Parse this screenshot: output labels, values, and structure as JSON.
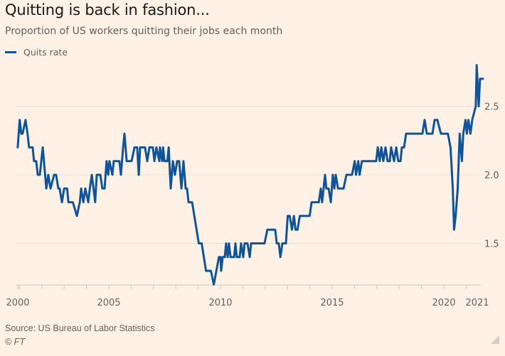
{
  "title": "Quitting is back in fashion...",
  "subtitle": "Proportion of US workers quitting their jobs each month",
  "legend": {
    "label": "Quits rate",
    "color": "#0f5499"
  },
  "footer": {
    "source": "Source: US Bureau of Labor Statistics",
    "copyright": "© FT"
  },
  "chart_data": {
    "type": "line",
    "title": "Quitting is back in fashion...",
    "subtitle": "Proportion of US workers quitting their jobs each month",
    "xlabel": "",
    "ylabel": "",
    "xlim": [
      2000.92,
      2021.6
    ],
    "ylim": [
      1.2,
      2.85
    ],
    "x_ticks": [
      "2000",
      "2005",
      "2010",
      "2015",
      "2020",
      "2021"
    ],
    "y_ticks": [
      "1.5",
      "2.0",
      "2.5"
    ],
    "grid": "horizontal",
    "legend_position": "top-left",
    "series": [
      {
        "name": "Quits rate",
        "color": "#0f5499",
        "points": [
          [
            2000.92,
            2.2
          ],
          [
            2001.01,
            2.4
          ],
          [
            2001.08,
            2.3
          ],
          [
            2001.14,
            2.3
          ],
          [
            2001.27,
            2.4
          ],
          [
            2001.36,
            2.3
          ],
          [
            2001.43,
            2.2
          ],
          [
            2001.59,
            2.2
          ],
          [
            2001.65,
            2.1
          ],
          [
            2001.75,
            2.1
          ],
          [
            2001.82,
            2.0
          ],
          [
            2001.91,
            2.0
          ],
          [
            2002.04,
            2.2
          ],
          [
            2002.2,
            1.9
          ],
          [
            2002.29,
            2.0
          ],
          [
            2002.39,
            1.9
          ],
          [
            2002.55,
            2.0
          ],
          [
            2002.64,
            2.0
          ],
          [
            2002.74,
            1.9
          ],
          [
            2002.8,
            1.9
          ],
          [
            2002.9,
            1.8
          ],
          [
            2003.0,
            1.9
          ],
          [
            2003.13,
            1.9
          ],
          [
            2003.19,
            1.8
          ],
          [
            2003.39,
            1.8
          ],
          [
            2003.57,
            1.7
          ],
          [
            2003.7,
            1.8
          ],
          [
            2003.76,
            1.9
          ],
          [
            2003.86,
            1.8
          ],
          [
            2003.95,
            1.9
          ],
          [
            2004.08,
            1.8
          ],
          [
            2004.15,
            1.9
          ],
          [
            2004.24,
            2.0
          ],
          [
            2004.39,
            1.8
          ],
          [
            2004.46,
            2.0
          ],
          [
            2004.62,
            2.0
          ],
          [
            2004.71,
            1.9
          ],
          [
            2004.81,
            1.9
          ],
          [
            2004.9,
            2.1
          ],
          [
            2004.97,
            2.0
          ],
          [
            2005.03,
            2.1
          ],
          [
            2005.16,
            2.0
          ],
          [
            2005.22,
            2.1
          ],
          [
            2005.47,
            2.1
          ],
          [
            2005.54,
            2.0
          ],
          [
            2005.64,
            2.2
          ],
          [
            2005.7,
            2.3
          ],
          [
            2005.8,
            2.1
          ],
          [
            2006.02,
            2.1
          ],
          [
            2006.15,
            2.2
          ],
          [
            2006.27,
            2.2
          ],
          [
            2006.34,
            2.0
          ],
          [
            2006.4,
            2.2
          ],
          [
            2006.62,
            2.2
          ],
          [
            2006.72,
            2.1
          ],
          [
            2006.82,
            2.2
          ],
          [
            2006.97,
            2.2
          ],
          [
            2007.04,
            2.1
          ],
          [
            2007.13,
            2.2
          ],
          [
            2007.26,
            2.1
          ],
          [
            2007.29,
            2.2
          ],
          [
            2007.39,
            2.1
          ],
          [
            2007.43,
            2.2
          ],
          [
            2007.49,
            2.1
          ],
          [
            2007.62,
            2.1
          ],
          [
            2007.68,
            2.2
          ],
          [
            2007.77,
            1.9
          ],
          [
            2007.87,
            2.1
          ],
          [
            2007.96,
            2.0
          ],
          [
            2008.06,
            2.1
          ],
          [
            2008.15,
            2.1
          ],
          [
            2008.25,
            1.9
          ],
          [
            2008.34,
            2.1
          ],
          [
            2008.44,
            1.9
          ],
          [
            2008.5,
            1.9
          ],
          [
            2008.57,
            1.8
          ],
          [
            2008.73,
            1.8
          ],
          [
            2009.03,
            1.5
          ],
          [
            2009.16,
            1.5
          ],
          [
            2009.35,
            1.3
          ],
          [
            2009.57,
            1.3
          ],
          [
            2009.7,
            1.2
          ],
          [
            2009.93,
            1.4
          ],
          [
            2010.0,
            1.4
          ],
          [
            2010.03,
            1.3
          ],
          [
            2010.1,
            1.4
          ],
          [
            2010.19,
            1.4
          ],
          [
            2010.25,
            1.5
          ],
          [
            2010.32,
            1.4
          ],
          [
            2010.38,
            1.5
          ],
          [
            2010.45,
            1.4
          ],
          [
            2010.54,
            1.4
          ],
          [
            2010.61,
            1.4
          ],
          [
            2010.67,
            1.5
          ],
          [
            2010.73,
            1.4
          ],
          [
            2010.86,
            1.4
          ],
          [
            2010.92,
            1.5
          ],
          [
            2011.02,
            1.4
          ],
          [
            2011.08,
            1.5
          ],
          [
            2011.21,
            1.5
          ],
          [
            2011.31,
            1.4
          ],
          [
            2011.37,
            1.5
          ],
          [
            2011.59,
            1.5
          ],
          [
            2011.97,
            1.5
          ],
          [
            2012.1,
            1.6
          ],
          [
            2012.45,
            1.6
          ],
          [
            2012.52,
            1.5
          ],
          [
            2012.61,
            1.5
          ],
          [
            2012.68,
            1.4
          ],
          [
            2012.77,
            1.5
          ],
          [
            2012.93,
            1.5
          ],
          [
            2013.01,
            1.7
          ],
          [
            2013.1,
            1.7
          ],
          [
            2013.2,
            1.6
          ],
          [
            2013.29,
            1.7
          ],
          [
            2013.36,
            1.6
          ],
          [
            2013.45,
            1.6
          ],
          [
            2013.55,
            1.7
          ],
          [
            2013.99,
            1.7
          ],
          [
            2014.08,
            1.8
          ],
          [
            2014.4,
            1.8
          ],
          [
            2014.49,
            1.9
          ],
          [
            2014.55,
            1.8
          ],
          [
            2014.68,
            2.0
          ],
          [
            2014.74,
            1.9
          ],
          [
            2014.84,
            1.9
          ],
          [
            2014.94,
            1.8
          ],
          [
            2015.03,
            2.0
          ],
          [
            2015.1,
            1.9
          ],
          [
            2015.16,
            2.0
          ],
          [
            2015.26,
            1.9
          ],
          [
            2015.51,
            1.9
          ],
          [
            2015.64,
            2.0
          ],
          [
            2015.89,
            2.0
          ],
          [
            2016.01,
            2.1
          ],
          [
            2016.07,
            2.0
          ],
          [
            2016.17,
            2.1
          ],
          [
            2016.23,
            2.0
          ],
          [
            2016.33,
            2.1
          ],
          [
            2016.97,
            2.1
          ],
          [
            2017.04,
            2.2
          ],
          [
            2017.13,
            2.1
          ],
          [
            2017.2,
            2.2
          ],
          [
            2017.29,
            2.1
          ],
          [
            2017.39,
            2.2
          ],
          [
            2017.48,
            2.1
          ],
          [
            2017.58,
            2.1
          ],
          [
            2017.64,
            2.2
          ],
          [
            2017.77,
            2.1
          ],
          [
            2017.87,
            2.2
          ],
          [
            2017.96,
            2.1
          ],
          [
            2018.06,
            2.1
          ],
          [
            2018.12,
            2.2
          ],
          [
            2018.22,
            2.2
          ],
          [
            2018.31,
            2.3
          ],
          [
            2019.04,
            2.3
          ],
          [
            2019.14,
            2.4
          ],
          [
            2019.24,
            2.3
          ],
          [
            2019.49,
            2.3
          ],
          [
            2019.59,
            2.4
          ],
          [
            2019.71,
            2.4
          ],
          [
            2019.87,
            2.3
          ],
          [
            2020.18,
            2.3
          ],
          [
            2020.3,
            2.2
          ],
          [
            2020.4,
            1.9
          ],
          [
            2020.46,
            1.6
          ],
          [
            2020.53,
            1.7
          ],
          [
            2020.62,
            1.9
          ],
          [
            2020.71,
            2.3
          ],
          [
            2020.81,
            2.1
          ],
          [
            2020.87,
            2.3
          ],
          [
            2020.97,
            2.4
          ],
          [
            2021.03,
            2.3
          ],
          [
            2021.1,
            2.4
          ],
          [
            2021.19,
            2.3
          ],
          [
            2021.27,
            2.4
          ],
          [
            2021.43,
            2.5
          ],
          [
            2021.47,
            2.8
          ],
          [
            2021.56,
            2.5
          ],
          [
            2021.62,
            2.7
          ],
          [
            2021.75,
            2.7
          ]
        ]
      }
    ]
  }
}
